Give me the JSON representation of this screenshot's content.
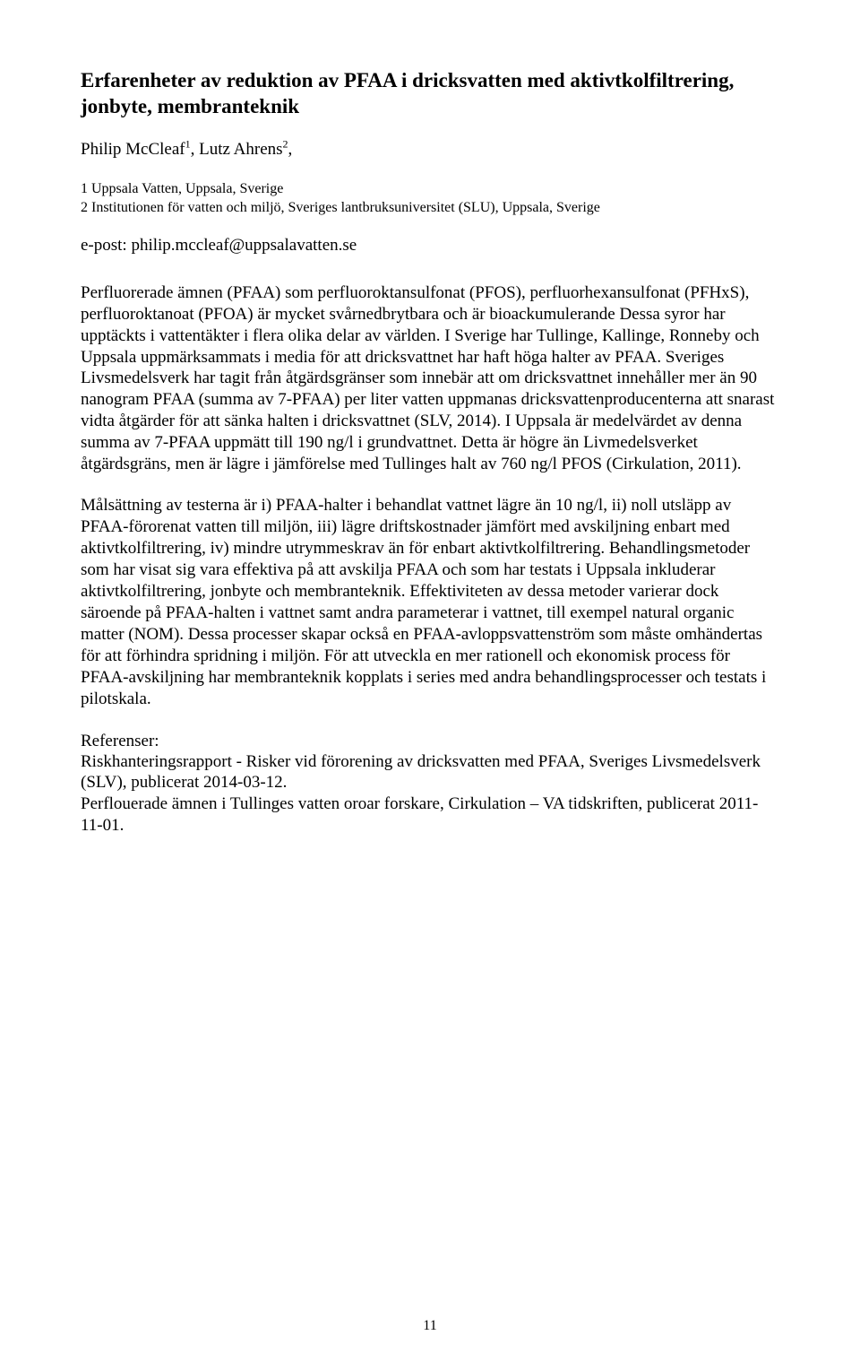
{
  "title": "Erfarenheter av reduktion av PFAA i dricksvatten med aktivtkolfiltrering, jonbyte, membranteknik",
  "authors_html": "Philip McCleaf<sup class=\"sup\">1</sup>, Lutz Ahrens<sup class=\"sup\">2</sup>,",
  "affil1": "1 Uppsala Vatten, Uppsala, Sverige",
  "affil2": "2 Institutionen för vatten och miljö, Sveriges lantbruksuniversitet (SLU), Uppsala, Sverige",
  "epost": "e-post: philip.mccleaf@uppsalavatten.se",
  "para1": "Perfluorerade ämnen (PFAA) som perfluoroktansulfonat (PFOS), perfluorhexansulfonat  (PFHxS), perfluoroktanoat (PFOA) är mycket svårnedbrytbara och är bioackumulerande Dessa syror har upptäckts i vattentäkter i flera olika delar av världen. I Sverige har Tullinge, Kallinge, Ronneby och Uppsala uppmärksammats i media för att dricksvattnet har haft höga halter av PFAA. Sveriges Livsmedelsverk har tagit från åtgärdsgränser som innebär att om dricksvattnet innehåller mer än 90 nanogram PFAA (summa av 7-PFAA) per liter vatten uppmanas dricksvattenproducenterna att snarast vidta åtgärder för att sänka halten i dricksvattnet (SLV, 2014). I Uppsala är medelvärdet av denna summa av 7-PFAA uppmätt till 190 ng/l i grundvattnet. Detta är högre än Livmedelsverket åtgärdsgräns, men är lägre i jämförelse med Tullinges halt av 760 ng/l PFOS (Cirkulation, 2011).",
  "para2": "Målsättning av testerna är i) PFAA-halter i behandlat vattnet lägre än 10 ng/l, ii) noll utsläpp av PFAA-förorenat vatten till miljön, iii) lägre driftskostnader jämfört med avskiljning enbart med aktivtkolfiltrering, iv) mindre utrymmeskrav än för enbart aktivtkolfiltrering. Behandlingsmetoder som har visat sig vara effektiva på att avskilja PFAA och som har testats i Uppsala inkluderar aktivtkolfiltrering, jonbyte och membranteknik. Effektiviteten av dessa metoder varierar dock säroende på PFAA-halten i vattnet samt andra parameterar i vattnet, till exempel natural organic matter (NOM). Dessa processer skapar också en PFAA-avloppsvattenström som måste omhändertas för att förhindra spridning i miljön. För att utveckla en mer rationell och ekonomisk process för PFAA-avskiljning har membranteknik kopplats i series med andra behandlingsprocesser och testats i pilotskala.",
  "refs_heading": "Referenser:",
  "ref1": "Riskhanteringsrapport - Risker vid förorening av dricksvatten med PFAA, Sveriges Livsmedelsverk (SLV), publicerat 2014-03-12.",
  "ref2": "Perflouerade ämnen i Tullinges vatten oroar forskare, Cirkulation – VA tidskriften, publicerat 2011-11-01.",
  "page_number": "11"
}
